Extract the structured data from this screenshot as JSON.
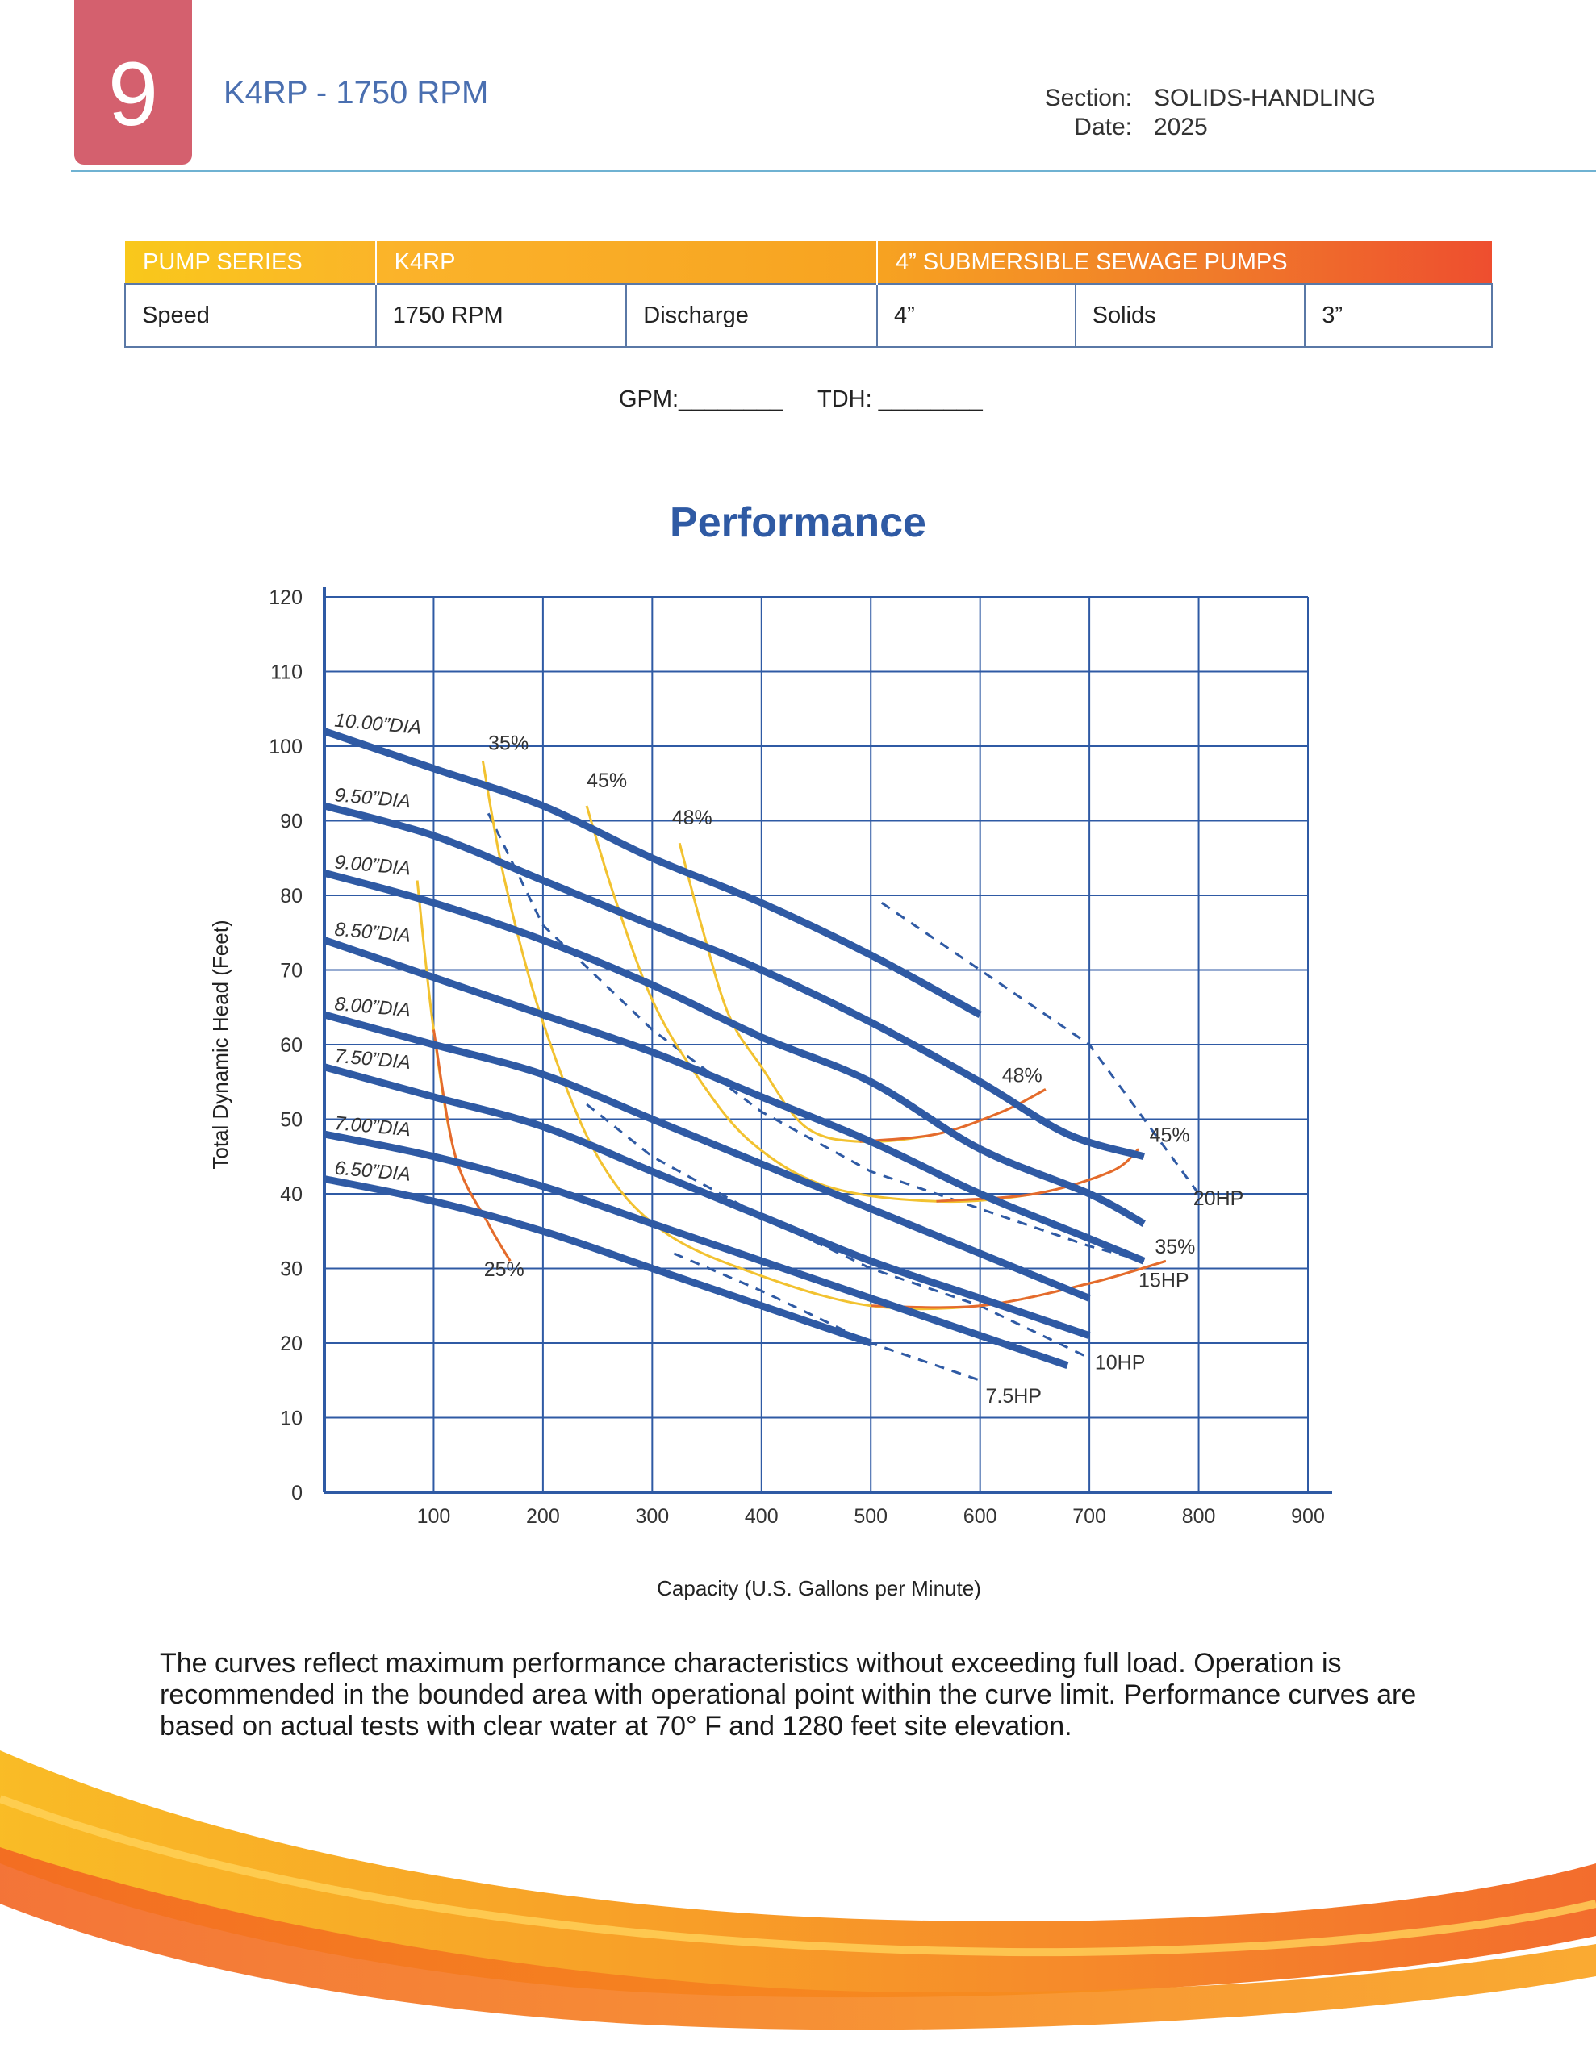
{
  "header": {
    "page_number": "9",
    "title": "K4RP - 1750 RPM",
    "section_label": "Section:",
    "section_value": "SOLIDS-HANDLING",
    "date_label": "Date:",
    "date_value": "2025"
  },
  "spec_table": {
    "header": [
      "PUMP SERIES",
      "K4RP",
      "4” SUBMERSIBLE SEWAGE PUMPS"
    ],
    "row": [
      "Speed",
      "1750 RPM",
      "Discharge",
      "4”",
      "Solids",
      "3”"
    ]
  },
  "entry": {
    "gpm_label": "GPM:________",
    "tdh_label": "TDH: ________"
  },
  "chart_data": {
    "type": "line",
    "title": "Performance",
    "xlabel": "Capacity (U.S. Gallons per Minute)",
    "ylabel": "Total Dynamic Head (Feet)",
    "xlim": [
      0,
      900
    ],
    "ylim": [
      0,
      120
    ],
    "x_ticks": [
      100,
      200,
      300,
      400,
      500,
      600,
      700,
      800,
      900
    ],
    "y_ticks": [
      0,
      10,
      20,
      30,
      40,
      50,
      60,
      70,
      80,
      90,
      100,
      110,
      120
    ],
    "impeller_curves": [
      {
        "name": "10.00”DIA",
        "points": [
          [
            0,
            102
          ],
          [
            100,
            97
          ],
          [
            200,
            92
          ],
          [
            300,
            85
          ],
          [
            400,
            79
          ],
          [
            500,
            72
          ],
          [
            600,
            64
          ]
        ]
      },
      {
        "name": "9.50”DIA",
        "points": [
          [
            0,
            92
          ],
          [
            100,
            88
          ],
          [
            200,
            82
          ],
          [
            300,
            76
          ],
          [
            400,
            70
          ],
          [
            500,
            63
          ],
          [
            600,
            55
          ],
          [
            680,
            48
          ],
          [
            750,
            45
          ]
        ]
      },
      {
        "name": "9.00”DIA",
        "points": [
          [
            0,
            83
          ],
          [
            100,
            79
          ],
          [
            200,
            74
          ],
          [
            300,
            68
          ],
          [
            400,
            61
          ],
          [
            500,
            55
          ],
          [
            600,
            46
          ],
          [
            700,
            40
          ],
          [
            750,
            36
          ]
        ]
      },
      {
        "name": "8.50”DIA",
        "points": [
          [
            0,
            74
          ],
          [
            100,
            69
          ],
          [
            200,
            64
          ],
          [
            300,
            59
          ],
          [
            400,
            53
          ],
          [
            500,
            47
          ],
          [
            600,
            40
          ],
          [
            700,
            34
          ],
          [
            750,
            31
          ]
        ]
      },
      {
        "name": "8.00”DIA",
        "points": [
          [
            0,
            64
          ],
          [
            100,
            60
          ],
          [
            200,
            56
          ],
          [
            300,
            50
          ],
          [
            400,
            44
          ],
          [
            500,
            38
          ],
          [
            600,
            32
          ],
          [
            700,
            26
          ]
        ]
      },
      {
        "name": "7.50”DIA",
        "points": [
          [
            0,
            57
          ],
          [
            100,
            53
          ],
          [
            200,
            49
          ],
          [
            300,
            43
          ],
          [
            400,
            37
          ],
          [
            500,
            31
          ],
          [
            600,
            26
          ],
          [
            700,
            21
          ]
        ]
      },
      {
        "name": "7.00”DIA",
        "points": [
          [
            0,
            48
          ],
          [
            100,
            45
          ],
          [
            200,
            41
          ],
          [
            300,
            36
          ],
          [
            400,
            31
          ],
          [
            500,
            26
          ],
          [
            600,
            21
          ],
          [
            680,
            17
          ]
        ]
      },
      {
        "name": "6.50”DIA",
        "points": [
          [
            0,
            42
          ],
          [
            100,
            39
          ],
          [
            200,
            35
          ],
          [
            300,
            30
          ],
          [
            400,
            25
          ],
          [
            500,
            20
          ]
        ]
      }
    ],
    "efficiency_curves": [
      {
        "name": "25%",
        "points": [
          [
            85,
            82
          ],
          [
            100,
            62
          ],
          [
            120,
            45
          ],
          [
            150,
            36
          ],
          [
            170,
            31
          ]
        ]
      },
      {
        "name": "35%",
        "points": [
          [
            145,
            98
          ],
          [
            165,
            82
          ],
          [
            200,
            63
          ],
          [
            250,
            45
          ],
          [
            310,
            35
          ],
          [
            400,
            29
          ],
          [
            500,
            25
          ],
          [
            600,
            25
          ],
          [
            700,
            28
          ],
          [
            770,
            31
          ]
        ]
      },
      {
        "name": "45%",
        "points": [
          [
            240,
            92
          ],
          [
            265,
            80
          ],
          [
            300,
            66
          ],
          [
            340,
            56
          ],
          [
            390,
            47
          ],
          [
            460,
            41
          ],
          [
            560,
            39
          ],
          [
            650,
            40
          ],
          [
            720,
            43
          ],
          [
            745,
            46
          ]
        ]
      },
      {
        "name": "48%",
        "points": [
          [
            325,
            87
          ],
          [
            345,
            76
          ],
          [
            370,
            64
          ],
          [
            400,
            57
          ],
          [
            440,
            49
          ],
          [
            490,
            47
          ],
          [
            560,
            48
          ],
          [
            620,
            51
          ],
          [
            660,
            54
          ]
        ]
      }
    ],
    "horsepower_limits": [
      {
        "name": "7.5HP",
        "points": [
          [
            320,
            32
          ],
          [
            400,
            27
          ],
          [
            500,
            20
          ],
          [
            600,
            15
          ]
        ]
      },
      {
        "name": "10HP",
        "points": [
          [
            240,
            52
          ],
          [
            300,
            45
          ],
          [
            400,
            37
          ],
          [
            500,
            30
          ],
          [
            600,
            25
          ],
          [
            700,
            18
          ]
        ]
      },
      {
        "name": "15HP",
        "points": [
          [
            150,
            91
          ],
          [
            200,
            76
          ],
          [
            300,
            62
          ],
          [
            400,
            51
          ],
          [
            500,
            43
          ],
          [
            600,
            38
          ],
          [
            700,
            33
          ],
          [
            750,
            31
          ]
        ]
      },
      {
        "name": "20HP",
        "points": [
          [
            510,
            79
          ],
          [
            600,
            70
          ],
          [
            700,
            60
          ],
          [
            800,
            40
          ]
        ]
      }
    ],
    "colors": {
      "impeller": "#2f5aa4",
      "eff_yellow": "#f2c230",
      "eff_orange": "#e46a2e",
      "hp": "#2f5aa4",
      "grid": "#2f5aa4"
    },
    "labels": {
      "35%_top": "35%",
      "45%_top": "45%",
      "48%_top": "48%",
      "25%_bottom": "25%",
      "48%_right": "48%",
      "45%_right": "45%",
      "35%_right": "35%",
      "20HP": "20HP",
      "15HP": "15HP",
      "10HP": "10HP",
      "7.5HP": "7.5HP"
    }
  },
  "footnote": "The curves reflect maximum performance characteristics without exceeding full load. Operation is recommended in the bounded area with operational point within the curve limit. Performance curves are based on actual tests with clear water at 70° F and 1280 feet site elevation."
}
